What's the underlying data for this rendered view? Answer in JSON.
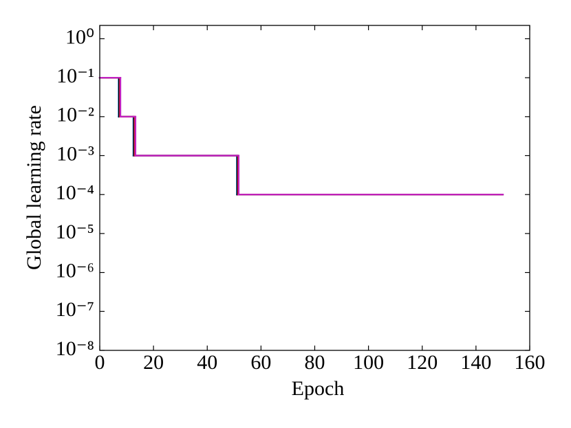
{
  "chart_data": {
    "type": "line",
    "drawstyle": "steps-post",
    "x_label": "Epoch",
    "y_label": "Global learning rate",
    "log_y": true,
    "grid": false,
    "xlim": [
      0,
      160
    ],
    "xticks": [
      0,
      20,
      40,
      60,
      80,
      100,
      120,
      140,
      160
    ],
    "ylim": [
      1e-08,
      2.2
    ],
    "yticks": [
      {
        "value": 1,
        "label": "10⁰"
      },
      {
        "value": 0.1,
        "label": "10⁻¹"
      },
      {
        "value": 0.01,
        "label": "10⁻²"
      },
      {
        "value": 0.001,
        "label": "10⁻³"
      },
      {
        "value": 0.0001,
        "label": "10⁻⁴"
      },
      {
        "value": 1e-05,
        "label": "10⁻⁵"
      },
      {
        "value": 1e-06,
        "label": "10⁻⁶"
      },
      {
        "value": 1e-07,
        "label": "10⁻⁷"
      },
      {
        "value": 1e-08,
        "label": "10⁻⁸"
      }
    ],
    "series": [
      {
        "color": "#1f77c4",
        "x": [
          0,
          7,
          12.5,
          51,
          150
        ],
        "values": [
          0.1,
          0.01,
          0.001,
          0.0001,
          0.0001
        ]
      },
      {
        "color": "#000000",
        "x": [
          0,
          7.2,
          12.7,
          51.2,
          150
        ],
        "values": [
          0.1,
          0.01,
          0.001,
          0.0001,
          0.0001
        ]
      },
      {
        "color": "#e0203a",
        "x": [
          0,
          7.5,
          13,
          51.5,
          150
        ],
        "values": [
          0.1,
          0.01,
          0.001,
          0.0001,
          0.0001
        ]
      },
      {
        "color": "#c020c0",
        "x": [
          0,
          7.7,
          13.3,
          51.7,
          150
        ],
        "values": [
          0.1,
          0.01,
          0.001,
          0.0001,
          0.0001
        ]
      }
    ]
  }
}
